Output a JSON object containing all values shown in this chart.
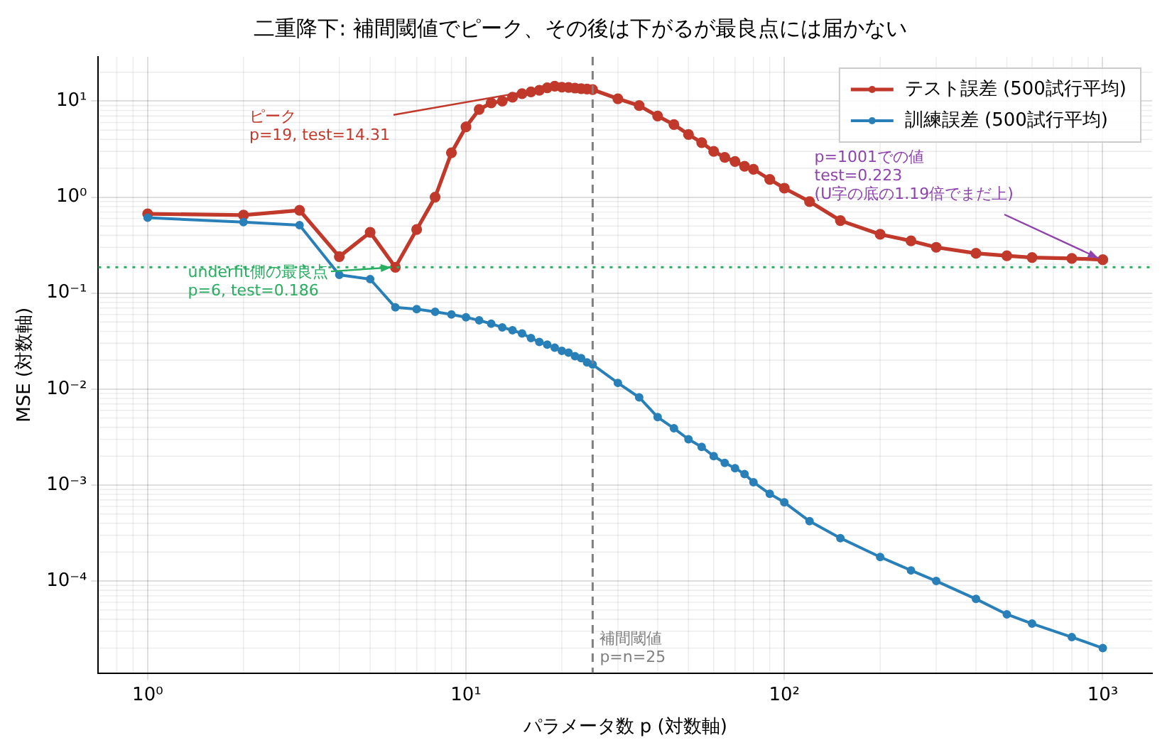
{
  "chart_data": {
    "type": "line",
    "title": "二重降下: 補間閾値でピーク、その後は下がるが最良点には届かない",
    "xlabel": "パラメータ数 p (対数軸)",
    "ylabel": "MSE (対数軸)",
    "series": [
      {
        "name": "テスト誤差 (500試行平均)",
        "color": "#c0392b",
        "x": [
          1,
          2,
          3,
          4,
          5,
          6,
          7,
          8,
          9,
          10,
          11,
          12,
          13,
          14,
          15,
          16,
          17,
          18,
          19,
          20,
          21,
          22,
          23,
          24,
          25,
          30,
          35,
          40,
          45,
          50,
          55,
          60,
          65,
          70,
          75,
          80,
          90,
          100,
          120,
          150,
          200,
          250,
          300,
          400,
          500,
          600,
          800,
          1001
        ],
        "values": [
          0.67,
          0.65,
          0.73,
          0.24,
          0.43,
          0.186,
          0.46,
          1.0,
          2.9,
          5.4,
          8.2,
          9.6,
          10,
          11,
          12,
          12.5,
          13,
          13.8,
          14.31,
          14.0,
          13.9,
          13.7,
          13.5,
          13.4,
          13.2,
          10.6,
          9.0,
          7.0,
          5.7,
          4.5,
          3.7,
          3.0,
          2.6,
          2.35,
          2.1,
          1.95,
          1.53,
          1.24,
          0.9,
          0.57,
          0.41,
          0.35,
          0.3,
          0.26,
          0.245,
          0.235,
          0.23,
          0.223
        ]
      },
      {
        "name": "訓練誤差 (500試行平均)",
        "color": "#2980b9",
        "x": [
          1,
          2,
          3,
          4,
          5,
          6,
          7,
          8,
          9,
          10,
          11,
          12,
          13,
          14,
          15,
          16,
          17,
          18,
          19,
          20,
          21,
          22,
          23,
          24,
          25,
          30,
          35,
          40,
          45,
          50,
          55,
          60,
          65,
          70,
          75,
          80,
          90,
          100,
          120,
          150,
          200,
          250,
          300,
          400,
          500,
          600,
          800,
          1001
        ],
        "values": [
          0.61,
          0.55,
          0.51,
          0.155,
          0.14,
          0.071,
          0.068,
          0.064,
          0.06,
          0.056,
          0.052,
          0.048,
          0.044,
          0.041,
          0.038,
          0.034,
          0.031,
          0.029,
          0.027,
          0.025,
          0.024,
          0.022,
          0.021,
          0.019,
          0.018,
          0.0116,
          0.0082,
          0.0051,
          0.0039,
          0.003,
          0.0025,
          0.002,
          0.0017,
          0.0015,
          0.0013,
          0.00107,
          0.00081,
          0.00066,
          0.00042,
          0.00028,
          0.000178,
          0.000129,
          0.0001,
          6.5e-05,
          4.5e-05,
          3.6e-05,
          2.6e-05,
          2e-05
        ]
      }
    ],
    "log": "xy",
    "xlim": [
      0.7,
      1430
    ],
    "ylim": [
      1.1e-05,
      29
    ],
    "xticks": [
      {
        "value": 1,
        "label": "10⁰"
      },
      {
        "value": 10,
        "label": "10¹"
      },
      {
        "value": 100,
        "label": "10²"
      },
      {
        "value": 1000,
        "label": "10³"
      }
    ],
    "yticks": [
      {
        "value": 0.0001,
        "label": "10⁻⁴"
      },
      {
        "value": 0.001,
        "label": "10⁻³"
      },
      {
        "value": 0.01,
        "label": "10⁻²"
      },
      {
        "value": 0.1,
        "label": "10⁻¹"
      },
      {
        "value": 1,
        "label": "10⁰"
      },
      {
        "value": 10,
        "label": "10¹"
      }
    ],
    "grid": true,
    "legend": "top right",
    "marker": "circle",
    "line_style": "solid",
    "ref_lines": [
      {
        "axis": "x",
        "value": 25,
        "label": "補間閾値\np=n=25",
        "color": "#808080",
        "line_style": "dashed"
      },
      {
        "axis": "y",
        "value": 0.186,
        "label": null,
        "color": "#27ae60",
        "line_style": "dotted"
      }
    ],
    "annotations": [
      {
        "text": "ピーク\np=19, test=14.31",
        "x": 19,
        "y": 14.31
      },
      {
        "text": "underfit側の最良点\np=6, test=0.186",
        "x": 6,
        "y": 0.186
      },
      {
        "text": "p=1001での値\ntest=0.223\n(U字の底の1.19倍でまだ上)",
        "x": 1001,
        "y": 0.223
      }
    ]
  }
}
